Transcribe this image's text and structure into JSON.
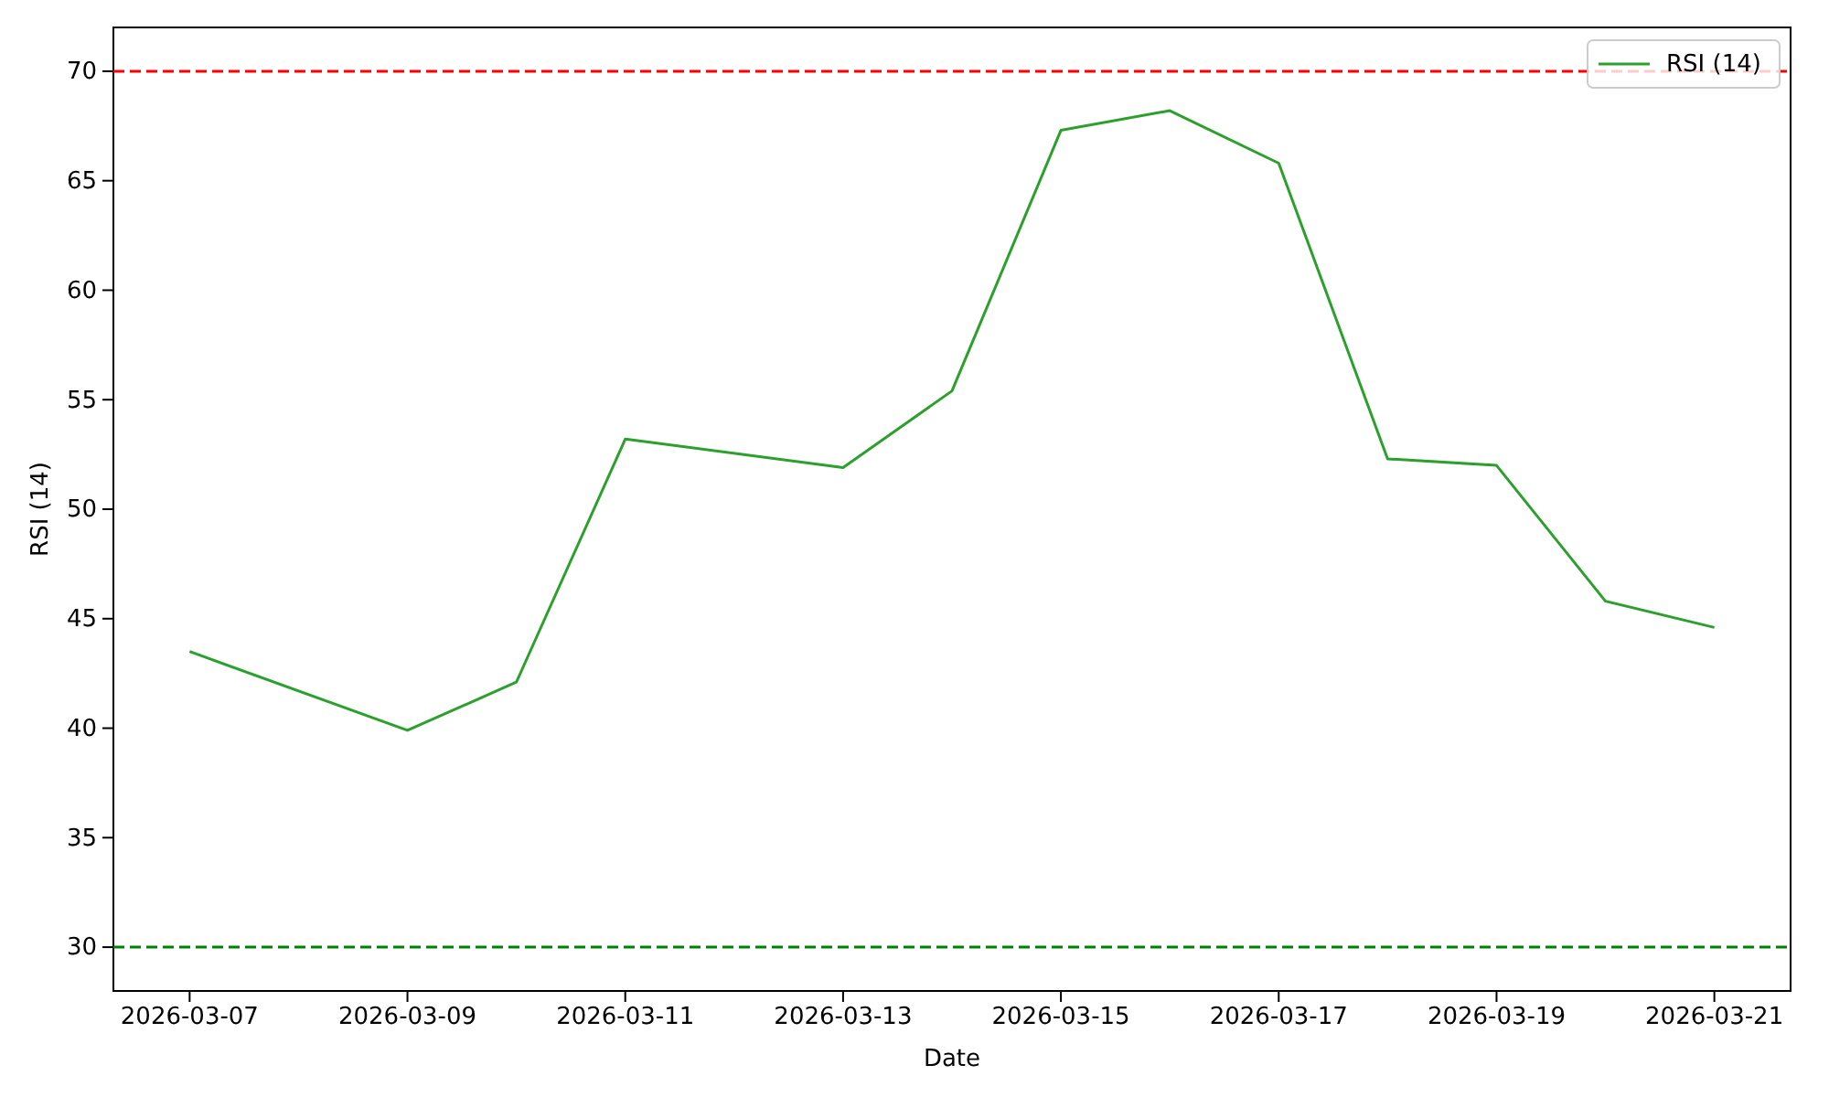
{
  "chart_data": {
    "type": "line",
    "xlabel": "Date",
    "ylabel": "RSI (14)",
    "x": [
      "2026-03-07",
      "2026-03-09",
      "2026-03-10",
      "2026-03-11",
      "2026-03-13",
      "2026-03-14",
      "2026-03-15",
      "2026-03-16",
      "2026-03-17",
      "2026-03-18",
      "2026-03-19",
      "2026-03-20",
      "2026-03-21"
    ],
    "series": [
      {
        "name": "RSI (14)",
        "color": "#2ca02c",
        "values": [
          43.5,
          39.9,
          42.1,
          53.2,
          51.9,
          55.4,
          67.3,
          68.2,
          65.8,
          52.3,
          52.0,
          45.8,
          44.6
        ]
      }
    ],
    "xlim": [
      "2026-03-06T07:12",
      "2026-03-21T16:48"
    ],
    "xticks": [
      "2026-03-07",
      "2026-03-09",
      "2026-03-11",
      "2026-03-13",
      "2026-03-15",
      "2026-03-17",
      "2026-03-19",
      "2026-03-21"
    ],
    "ylim": [
      28,
      72
    ],
    "yticks": [
      30,
      35,
      40,
      45,
      50,
      55,
      60,
      65,
      70
    ],
    "ref_lines": [
      {
        "axis": "y",
        "value": 70,
        "color": "#ff0000",
        "line_style": "dashed"
      },
      {
        "axis": "y",
        "value": 30,
        "color": "#008000",
        "line_style": "dashed"
      }
    ],
    "legend": "top right",
    "grid": false,
    "marker": "none",
    "line_style": "solid"
  }
}
